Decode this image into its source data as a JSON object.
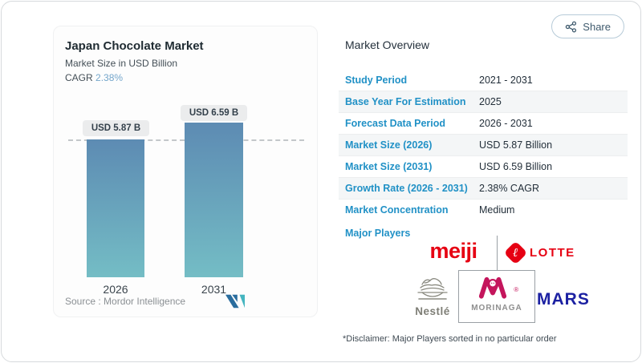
{
  "share": {
    "label": "Share"
  },
  "left_card": {
    "title": "Japan Chocolate Market",
    "subtitle": "Market Size in USD Billion",
    "cagr_label": "CAGR ",
    "cagr_value": "2.38%",
    "source_text": "Source :  Mordor Intelligence"
  },
  "chart_data": {
    "type": "bar",
    "title": "Japan Chocolate Market",
    "subtitle": "Market Size in USD Billion",
    "cagr": "2.38%",
    "categories": [
      "2026",
      "2031"
    ],
    "values": [
      5.87,
      6.59
    ],
    "unit": "USD Billion",
    "bar_labels": [
      "USD 5.87 B",
      "USD 6.59 B"
    ],
    "ylim": [
      0,
      6.59
    ],
    "grid": "single dashed reference line at 5.87",
    "bar_gradient_top": "#5d8bb3",
    "bar_gradient_bottom": "#74bdc5"
  },
  "overview": {
    "heading": "Market Overview",
    "rows": [
      {
        "label": "Study Period",
        "value": "2021 - 2031"
      },
      {
        "label": "Base Year For Estimation",
        "value": "2025"
      },
      {
        "label": "Forecast Data Period",
        "value": "2026 - 2031"
      },
      {
        "label": "Market Size (2026)",
        "value": "USD 5.87 Billion"
      },
      {
        "label": "Market Size (2031)",
        "value": "USD 6.59 Billion"
      },
      {
        "label": "Growth Rate (2026 - 2031)",
        "value": "2.38% CAGR"
      },
      {
        "label": "Market Concentration",
        "value": "Medium"
      }
    ],
    "major_players_label": "Major Players",
    "major_players": {
      "meiji": "meiji",
      "lotte": "LOTTE",
      "lotte_mark": "ℓ",
      "nestle": "Nestlé",
      "morinaga": "MORINAGA",
      "morinaga_reg": "®",
      "mars": "MARS"
    },
    "disclaimer": "*Disclaimer: Major Players sorted in no particular order"
  },
  "colors": {
    "accent_blue": "#2191c6",
    "navy_text": "#25313c",
    "meiji_red": "#e60012",
    "lotte_red": "#e60013",
    "morinaga_crimson": "#c4155c",
    "nestle_gray": "#7e7e76",
    "mars_blue": "#1c21a2",
    "mordor_dark_blue": "#2a6d9e",
    "mordor_teal": "#45b5c0"
  }
}
